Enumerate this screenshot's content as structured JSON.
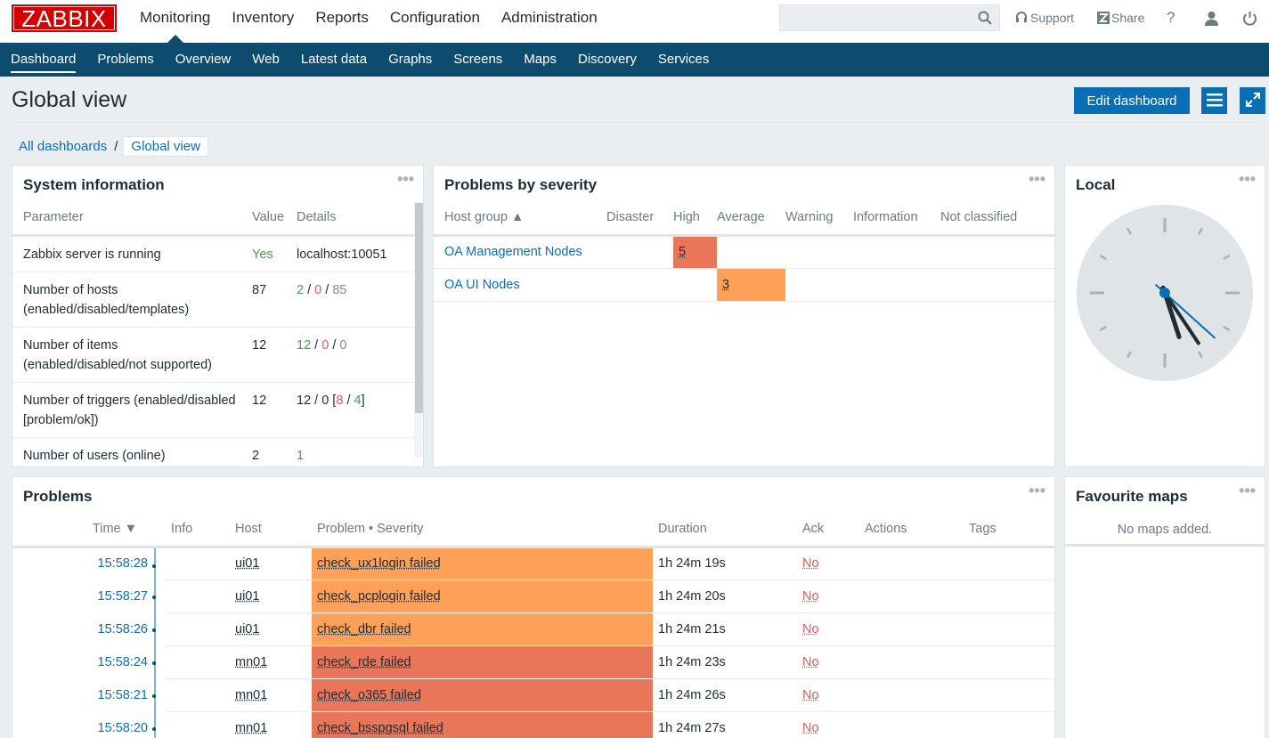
{
  "app": {
    "logo": "ZABBIX"
  },
  "main_menu": [
    "Monitoring",
    "Inventory",
    "Reports",
    "Configuration",
    "Administration"
  ],
  "search": {
    "placeholder": ""
  },
  "top_icons": {
    "support": "Support",
    "share": "Share",
    "help": "?"
  },
  "sub_menu": [
    "Dashboard",
    "Problems",
    "Overview",
    "Web",
    "Latest data",
    "Graphs",
    "Screens",
    "Maps",
    "Discovery",
    "Services"
  ],
  "page": {
    "title": "Global view",
    "edit_label": "Edit dashboard"
  },
  "breadcrumb": {
    "all": "All dashboards",
    "sep": "/",
    "current": "Global view"
  },
  "system_info": {
    "title": "System information",
    "headers": [
      "Parameter",
      "Value",
      "Details"
    ],
    "rows": [
      {
        "param": "Zabbix server is running",
        "value": "Yes",
        "details": "localhost:10051"
      },
      {
        "param": "Number of hosts (enabled/disabled/templates)",
        "value": "87",
        "d1": "2",
        "d2": "0",
        "d3": "85"
      },
      {
        "param": "Number of items (enabled/disabled/not supported)",
        "value": "12",
        "d1": "12",
        "d2": "0",
        "d3": "0"
      },
      {
        "param": "Number of triggers (enabled/disabled [problem/ok])",
        "value": "12",
        "d1": "12 / 0 [",
        "d2": "8",
        "d3": "4"
      },
      {
        "param": "Number of users (online)",
        "value": "2",
        "d1": "1"
      }
    ]
  },
  "severity": {
    "title": "Problems by severity",
    "headers": [
      "Host group ▲",
      "Disaster",
      "High",
      "Average",
      "Warning",
      "Information",
      "Not classified"
    ],
    "rows": [
      {
        "group": "OA Management Nodes",
        "high": "5",
        "average": ""
      },
      {
        "group": "OA UI Nodes",
        "high": "",
        "average": "3"
      }
    ],
    "colors": {
      "high": "#e97659",
      "average": "#ffa059"
    }
  },
  "clock": {
    "title": "Local",
    "hour": 17,
    "minute": 24,
    "second": 22
  },
  "problems": {
    "title": "Problems",
    "headers": [
      "Time ▼",
      "Info",
      "Host",
      "Problem • Severity",
      "Duration",
      "Ack",
      "Actions",
      "Tags"
    ],
    "rows": [
      {
        "time": "15:58:28",
        "host": "ui01",
        "problem": "check_ux1login failed",
        "severity": "average",
        "duration": "1h 24m 19s",
        "ack": "No"
      },
      {
        "time": "15:58:27",
        "host": "ui01",
        "problem": "check_pcplogin failed",
        "severity": "average",
        "duration": "1h 24m 20s",
        "ack": "No"
      },
      {
        "time": "15:58:26",
        "host": "ui01",
        "problem": "check_dbr failed",
        "severity": "average",
        "duration": "1h 24m 21s",
        "ack": "No"
      },
      {
        "time": "15:58:24",
        "host": "mn01",
        "problem": "check_rde failed",
        "severity": "high",
        "duration": "1h 24m 23s",
        "ack": "No"
      },
      {
        "time": "15:58:21",
        "host": "mn01",
        "problem": "check_o365 failed",
        "severity": "high",
        "duration": "1h 24m 26s",
        "ack": "No"
      },
      {
        "time": "15:58:20",
        "host": "mn01",
        "problem": "check_bsspgsql failed",
        "severity": "high",
        "duration": "1h 24m 27s",
        "ack": "No"
      }
    ]
  },
  "fav_maps": {
    "title": "Favourite maps",
    "empty": "No maps added."
  },
  "colors": {
    "brand": "#d40000",
    "nav": "#0e4c6f",
    "link": "#0a6eb4"
  }
}
